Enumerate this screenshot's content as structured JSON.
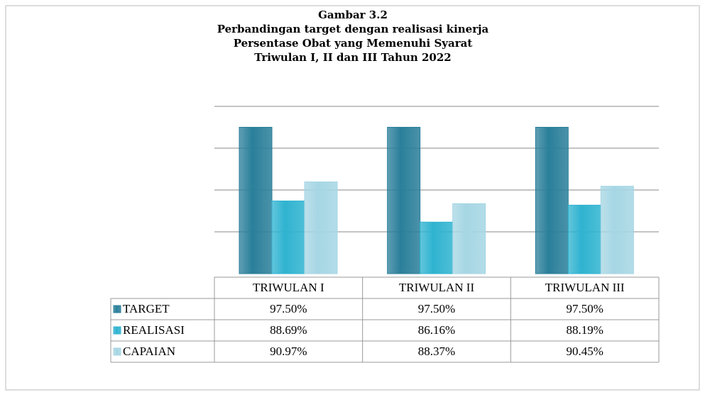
{
  "chart_data": {
    "type": "bar",
    "title": [
      "Gambar 3.2",
      "Perbandingan target dengan realisasi kinerja",
      "Persentase Obat yang Memenuhi Syarat",
      "Triwulan I, II dan III Tahun 2022"
    ],
    "categories": [
      "TRIWULAN I",
      "TRIWULAN II",
      "TRIWULAN III"
    ],
    "series": [
      {
        "name": "TARGET",
        "color": "#2a7f9a",
        "values": [
          97.5,
          97.5,
          97.5
        ],
        "value_labels": [
          "97.50%",
          "97.50%",
          "97.50%"
        ]
      },
      {
        "name": "REALISASI",
        "color": "#2fb3d0",
        "values": [
          88.69,
          86.16,
          88.19
        ],
        "value_labels": [
          "88.69%",
          "86.16%",
          "88.19%"
        ]
      },
      {
        "name": "CAPAIAN",
        "color": "#a6d6e4",
        "values": [
          90.97,
          88.37,
          90.45
        ],
        "value_labels": [
          "90.97%",
          "88.37%",
          "90.45%"
        ]
      }
    ],
    "ylim": [
      80,
      100
    ],
    "yticks": [
      80,
      85,
      90,
      95,
      100
    ],
    "grid": true
  }
}
